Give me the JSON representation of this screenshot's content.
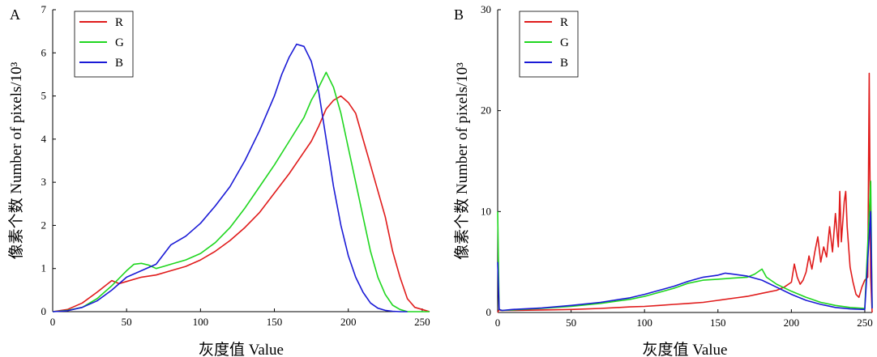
{
  "chart_data": [
    {
      "panel_label": "A",
      "type": "line",
      "xlabel": "灰度值  Value",
      "ylabel": "像素个数  Number of pixels/10³",
      "xlim": [
        0,
        255
      ],
      "ylim": [
        0,
        7
      ],
      "xticks": [
        "0",
        "50",
        "100",
        "150",
        "200",
        "250"
      ],
      "yticks": [
        "0",
        "1",
        "2",
        "3",
        "4",
        "5",
        "6",
        "7"
      ],
      "legend_position": "top-left",
      "series": [
        {
          "name": "R",
          "color": "#e01b1b",
          "x": [
            0,
            10,
            20,
            30,
            40,
            45,
            50,
            60,
            70,
            80,
            90,
            100,
            110,
            120,
            130,
            140,
            150,
            160,
            170,
            175,
            180,
            185,
            190,
            195,
            200,
            205,
            210,
            215,
            220,
            225,
            230,
            235,
            240,
            245,
            250,
            255
          ],
          "y": [
            0,
            0.05,
            0.2,
            0.45,
            0.72,
            0.65,
            0.7,
            0.8,
            0.85,
            0.95,
            1.05,
            1.2,
            1.4,
            1.65,
            1.95,
            2.3,
            2.75,
            3.2,
            3.7,
            3.95,
            4.3,
            4.7,
            4.9,
            5.0,
            4.85,
            4.6,
            4.0,
            3.4,
            2.8,
            2.2,
            1.4,
            0.8,
            0.3,
            0.1,
            0.05,
            0
          ]
        },
        {
          "name": "G",
          "color": "#1fd61f",
          "x": [
            0,
            10,
            20,
            30,
            40,
            50,
            55,
            60,
            65,
            70,
            75,
            80,
            90,
            100,
            110,
            120,
            130,
            140,
            150,
            160,
            170,
            175,
            180,
            185,
            190,
            195,
            200,
            205,
            210,
            215,
            220,
            225,
            230,
            235,
            240,
            245,
            250,
            255
          ],
          "y": [
            0,
            0.03,
            0.1,
            0.3,
            0.6,
            0.95,
            1.1,
            1.12,
            1.08,
            1.0,
            1.05,
            1.1,
            1.2,
            1.35,
            1.6,
            1.95,
            2.4,
            2.9,
            3.4,
            3.95,
            4.5,
            4.9,
            5.2,
            5.55,
            5.2,
            4.6,
            3.8,
            3.0,
            2.2,
            1.4,
            0.8,
            0.4,
            0.15,
            0.05,
            0,
            0,
            0,
            0
          ]
        },
        {
          "name": "B",
          "color": "#1a1ad6",
          "x": [
            0,
            10,
            20,
            30,
            40,
            50,
            60,
            70,
            80,
            90,
            100,
            110,
            120,
            130,
            140,
            150,
            155,
            160,
            165,
            170,
            175,
            180,
            185,
            190,
            195,
            200,
            205,
            210,
            215,
            220,
            225,
            230,
            235,
            240
          ],
          "y": [
            0,
            0.02,
            0.1,
            0.25,
            0.5,
            0.8,
            0.95,
            1.1,
            1.55,
            1.75,
            2.05,
            2.45,
            2.9,
            3.5,
            4.2,
            5.0,
            5.5,
            5.9,
            6.2,
            6.15,
            5.8,
            5.1,
            4.0,
            2.9,
            2.0,
            1.3,
            0.8,
            0.45,
            0.2,
            0.08,
            0.03,
            0.01,
            0,
            0
          ]
        }
      ]
    },
    {
      "panel_label": "B",
      "type": "line",
      "xlabel": "灰度值  Value",
      "ylabel": "像素个数  Number of pixels/10³",
      "xlim": [
        0,
        255
      ],
      "ylim": [
        0,
        30
      ],
      "xticks": [
        "0",
        "50",
        "100",
        "150",
        "200",
        "250"
      ],
      "yticks": [
        "0",
        "10",
        "20",
        "30"
      ],
      "legend_position": "top-left",
      "series": [
        {
          "name": "R",
          "color": "#e01b1b",
          "x": [
            0,
            1,
            2,
            10,
            30,
            50,
            70,
            90,
            100,
            110,
            120,
            130,
            140,
            150,
            160,
            170,
            180,
            190,
            195,
            200,
            202,
            204,
            206,
            208,
            210,
            212,
            214,
            216,
            218,
            220,
            222,
            224,
            226,
            228,
            230,
            232,
            233,
            234,
            236,
            237,
            238,
            240,
            242,
            244,
            246,
            248,
            250,
            252,
            253,
            254,
            255
          ],
          "y": [
            0,
            0.3,
            0.2,
            0.2,
            0.25,
            0.3,
            0.4,
            0.55,
            0.6,
            0.7,
            0.8,
            0.9,
            1.0,
            1.2,
            1.4,
            1.6,
            1.9,
            2.2,
            2.5,
            3.0,
            4.8,
            3.5,
            2.8,
            3.2,
            4.0,
            5.6,
            4.3,
            6.0,
            7.5,
            5.0,
            6.5,
            5.5,
            8.5,
            6.0,
            9.8,
            6.5,
            12.0,
            7.0,
            11.0,
            12.0,
            8.5,
            4.5,
            3.0,
            1.8,
            1.5,
            2.5,
            3.2,
            3.5,
            23.7,
            3.5,
            0
          ]
        },
        {
          "name": "G",
          "color": "#1fd61f",
          "x": [
            0,
            1,
            3,
            10,
            30,
            50,
            70,
            90,
            100,
            110,
            120,
            130,
            140,
            150,
            160,
            170,
            175,
            180,
            183,
            185,
            190,
            200,
            210,
            220,
            230,
            240,
            250,
            254,
            255
          ],
          "y": [
            10,
            0.3,
            0.2,
            0.25,
            0.4,
            0.6,
            0.9,
            1.3,
            1.6,
            2.0,
            2.4,
            2.9,
            3.2,
            3.3,
            3.4,
            3.5,
            3.8,
            4.3,
            3.5,
            3.3,
            2.8,
            2.1,
            1.5,
            1.0,
            0.7,
            0.5,
            0.4,
            13,
            0.5
          ]
        },
        {
          "name": "B",
          "color": "#1a1ad6",
          "x": [
            0,
            1,
            3,
            10,
            30,
            50,
            70,
            90,
            100,
            110,
            120,
            130,
            140,
            150,
            155,
            160,
            170,
            180,
            190,
            200,
            210,
            220,
            230,
            240,
            250,
            254,
            255
          ],
          "y": [
            5,
            0.3,
            0.2,
            0.3,
            0.45,
            0.7,
            1.0,
            1.45,
            1.8,
            2.2,
            2.6,
            3.1,
            3.5,
            3.7,
            3.9,
            3.8,
            3.6,
            3.2,
            2.5,
            1.8,
            1.2,
            0.8,
            0.5,
            0.35,
            0.3,
            10,
            0.4
          ]
        }
      ]
    }
  ]
}
